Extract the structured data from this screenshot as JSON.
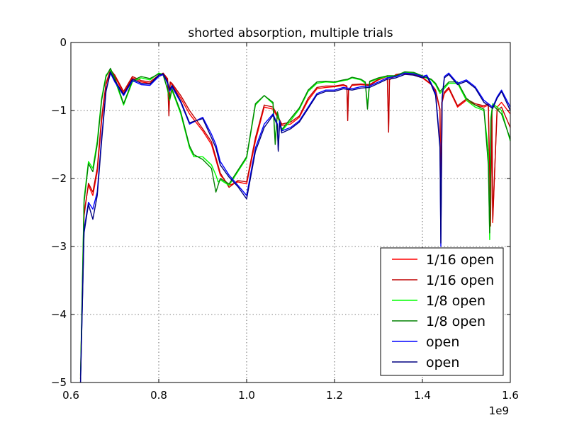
{
  "chart_data": {
    "type": "line",
    "title": "shorted absorption, multiple trials",
    "xlabel": "",
    "ylabel": "",
    "x_offset_label": "1e9",
    "xlim": [
      0.6,
      1.6
    ],
    "ylim": [
      -5,
      0
    ],
    "x_ticks": [
      0.6,
      0.8,
      1.0,
      1.2,
      1.4,
      1.6
    ],
    "x_tick_labels": [
      "0.6",
      "0.8",
      "1.0",
      "1.2",
      "1.4",
      "1.6"
    ],
    "y_ticks": [
      0,
      -1,
      -2,
      -3,
      -4,
      -5
    ],
    "y_tick_labels": [
      "0",
      "−1",
      "−2",
      "−3",
      "−4",
      "−5"
    ],
    "grid": true,
    "legend_position": "lower-right",
    "series": [
      {
        "name": "1/16 open",
        "color": "#ff0000",
        "x": [
          0.622,
          0.63,
          0.64,
          0.65,
          0.66,
          0.67,
          0.68,
          0.69,
          0.7,
          0.72,
          0.74,
          0.76,
          0.78,
          0.8,
          0.81,
          0.82,
          0.823,
          0.825,
          0.826,
          0.83,
          0.85,
          0.87,
          0.9,
          0.92,
          0.94,
          0.96,
          0.98,
          1.0,
          1.02,
          1.04,
          1.06,
          1.08,
          1.1,
          1.12,
          1.14,
          1.16,
          1.18,
          1.2,
          1.22,
          1.228,
          1.23,
          1.232,
          1.24,
          1.26,
          1.28,
          1.3,
          1.32,
          1.323,
          1.325,
          1.34,
          1.36,
          1.38,
          1.4,
          1.42,
          1.43,
          1.44,
          1.442,
          1.444,
          1.45,
          1.46,
          1.48,
          1.5,
          1.52,
          1.54,
          1.55,
          1.555,
          1.558,
          1.56,
          1.57,
          1.58,
          1.6
        ],
        "y": [
          -4.9,
          -2.5,
          -2.1,
          -2.25,
          -1.9,
          -1.15,
          -0.62,
          -0.42,
          -0.5,
          -0.75,
          -0.52,
          -0.58,
          -0.6,
          -0.5,
          -0.47,
          -0.55,
          -0.9,
          -0.75,
          -0.6,
          -0.62,
          -0.82,
          -1.05,
          -1.3,
          -1.5,
          -1.95,
          -2.1,
          -2.05,
          -2.08,
          -1.45,
          -0.95,
          -0.98,
          -1.22,
          -1.2,
          -1.1,
          -0.85,
          -0.68,
          -0.66,
          -0.65,
          -0.63,
          -0.65,
          -1.05,
          -0.7,
          -0.63,
          -0.62,
          -0.63,
          -0.55,
          -0.5,
          -1.25,
          -0.55,
          -0.48,
          -0.46,
          -0.48,
          -0.52,
          -0.62,
          -0.72,
          -1.0,
          -2.6,
          -0.9,
          -0.75,
          -0.68,
          -0.95,
          -0.85,
          -0.92,
          -0.95,
          -0.92,
          -2.55,
          -1.0,
          -2.65,
          -0.95,
          -0.88,
          -1.05
        ]
      },
      {
        "name": "1/16 open",
        "color": "#bf0000",
        "x": [
          0.622,
          0.63,
          0.64,
          0.65,
          0.66,
          0.67,
          0.68,
          0.69,
          0.7,
          0.72,
          0.74,
          0.76,
          0.78,
          0.8,
          0.81,
          0.82,
          0.823,
          0.825,
          0.826,
          0.83,
          0.85,
          0.87,
          0.9,
          0.92,
          0.94,
          0.96,
          0.98,
          1.0,
          1.02,
          1.04,
          1.06,
          1.08,
          1.1,
          1.12,
          1.14,
          1.16,
          1.18,
          1.2,
          1.22,
          1.228,
          1.23,
          1.232,
          1.24,
          1.26,
          1.28,
          1.3,
          1.32,
          1.323,
          1.325,
          1.34,
          1.36,
          1.38,
          1.4,
          1.42,
          1.43,
          1.44,
          1.442,
          1.444,
          1.45,
          1.46,
          1.48,
          1.5,
          1.52,
          1.54,
          1.55,
          1.555,
          1.558,
          1.56,
          1.57,
          1.58,
          1.6
        ],
        "y": [
          -4.95,
          -2.55,
          -2.07,
          -2.2,
          -1.85,
          -1.1,
          -0.6,
          -0.4,
          -0.48,
          -0.72,
          -0.5,
          -0.56,
          -0.58,
          -0.48,
          -0.45,
          -0.53,
          -1.08,
          -0.72,
          -0.58,
          -0.6,
          -0.78,
          -1.0,
          -1.27,
          -1.46,
          -1.92,
          -2.13,
          -2.03,
          -2.05,
          -1.4,
          -0.92,
          -0.95,
          -1.2,
          -1.17,
          -1.08,
          -0.82,
          -0.66,
          -0.64,
          -0.64,
          -0.62,
          -0.64,
          -1.15,
          -0.7,
          -0.62,
          -0.61,
          -0.62,
          -0.54,
          -0.49,
          -1.32,
          -0.55,
          -0.47,
          -0.45,
          -0.47,
          -0.51,
          -0.61,
          -0.7,
          -0.98,
          -2.65,
          -0.88,
          -0.73,
          -0.66,
          -0.93,
          -0.83,
          -0.9,
          -0.93,
          -0.9,
          -2.7,
          -1.0,
          -2.6,
          -1.0,
          -0.95,
          -1.25
        ]
      },
      {
        "name": "1/8 open",
        "color": "#00ff00",
        "x": [
          0.622,
          0.63,
          0.64,
          0.65,
          0.66,
          0.67,
          0.68,
          0.69,
          0.7,
          0.72,
          0.74,
          0.76,
          0.78,
          0.8,
          0.81,
          0.82,
          0.825,
          0.83,
          0.85,
          0.87,
          0.88,
          0.9,
          0.92,
          0.93,
          0.935,
          0.94,
          0.96,
          0.98,
          1.0,
          1.02,
          1.04,
          1.06,
          1.065,
          1.07,
          1.08,
          1.1,
          1.12,
          1.14,
          1.16,
          1.18,
          1.2,
          1.22,
          1.23,
          1.24,
          1.26,
          1.27,
          1.275,
          1.28,
          1.3,
          1.32,
          1.34,
          1.36,
          1.38,
          1.4,
          1.42,
          1.43,
          1.44,
          1.46,
          1.48,
          1.5,
          1.52,
          1.54,
          1.55,
          1.553,
          1.556,
          1.56,
          1.58,
          1.6
        ],
        "y": [
          -4.9,
          -2.3,
          -1.75,
          -1.85,
          -1.45,
          -0.82,
          -0.48,
          -0.4,
          -0.55,
          -0.92,
          -0.58,
          -0.52,
          -0.55,
          -0.45,
          -0.47,
          -0.7,
          -0.85,
          -0.7,
          -1.05,
          -1.55,
          -1.68,
          -1.68,
          -1.8,
          -1.95,
          -2.05,
          -2.02,
          -2.1,
          -1.9,
          -1.7,
          -0.92,
          -0.78,
          -0.9,
          -1.45,
          -1.05,
          -1.3,
          -1.15,
          -0.98,
          -0.72,
          -0.6,
          -0.58,
          -0.59,
          -0.56,
          -0.55,
          -0.52,
          -0.55,
          -0.6,
          -0.92,
          -0.58,
          -0.53,
          -0.5,
          -0.5,
          -0.44,
          -0.45,
          -0.5,
          -0.55,
          -0.62,
          -0.75,
          -0.6,
          -0.6,
          -0.85,
          -0.95,
          -1.0,
          -1.6,
          -2.9,
          -1.1,
          -0.9,
          -1.0,
          -1.45
        ]
      },
      {
        "name": "1/8 open",
        "color": "#008000",
        "x": [
          0.622,
          0.63,
          0.64,
          0.65,
          0.66,
          0.67,
          0.68,
          0.69,
          0.7,
          0.72,
          0.74,
          0.76,
          0.78,
          0.8,
          0.81,
          0.82,
          0.825,
          0.83,
          0.85,
          0.87,
          0.88,
          0.9,
          0.92,
          0.93,
          0.935,
          0.94,
          0.96,
          0.98,
          1.0,
          1.02,
          1.04,
          1.06,
          1.065,
          1.07,
          1.08,
          1.1,
          1.12,
          1.14,
          1.16,
          1.18,
          1.2,
          1.22,
          1.23,
          1.24,
          1.26,
          1.27,
          1.275,
          1.28,
          1.3,
          1.32,
          1.34,
          1.36,
          1.38,
          1.4,
          1.42,
          1.43,
          1.44,
          1.46,
          1.48,
          1.5,
          1.52,
          1.54,
          1.55,
          1.553,
          1.556,
          1.56,
          1.58,
          1.6
        ],
        "y": [
          -4.95,
          -2.35,
          -1.78,
          -1.9,
          -1.5,
          -0.85,
          -0.5,
          -0.38,
          -0.52,
          -0.9,
          -0.56,
          -0.5,
          -0.53,
          -0.46,
          -0.48,
          -0.68,
          -0.83,
          -0.68,
          -1.02,
          -1.52,
          -1.65,
          -1.72,
          -1.85,
          -2.2,
          -2.1,
          -2.0,
          -2.08,
          -1.88,
          -1.68,
          -0.9,
          -0.78,
          -0.88,
          -1.5,
          -1.02,
          -1.28,
          -1.12,
          -0.96,
          -0.7,
          -0.58,
          -0.57,
          -0.58,
          -0.55,
          -0.54,
          -0.51,
          -0.54,
          -0.58,
          -0.98,
          -0.57,
          -0.52,
          -0.49,
          -0.49,
          -0.43,
          -0.44,
          -0.49,
          -0.54,
          -0.6,
          -0.72,
          -0.58,
          -0.58,
          -0.82,
          -0.92,
          -0.98,
          -1.8,
          -2.8,
          -1.15,
          -0.92,
          -1.05,
          -1.42
        ]
      },
      {
        "name": "open",
        "color": "#0000ff",
        "x": [
          0.622,
          0.63,
          0.64,
          0.65,
          0.66,
          0.67,
          0.68,
          0.69,
          0.7,
          0.72,
          0.74,
          0.76,
          0.78,
          0.8,
          0.81,
          0.82,
          0.825,
          0.83,
          0.85,
          0.87,
          0.9,
          0.92,
          0.93,
          0.94,
          0.96,
          0.98,
          1.0,
          1.02,
          1.04,
          1.06,
          1.07,
          1.072,
          1.075,
          1.08,
          1.1,
          1.12,
          1.14,
          1.16,
          1.18,
          1.2,
          1.22,
          1.24,
          1.26,
          1.28,
          1.3,
          1.32,
          1.34,
          1.36,
          1.38,
          1.4,
          1.41,
          1.42,
          1.43,
          1.44,
          1.442,
          1.445,
          1.45,
          1.46,
          1.48,
          1.5,
          1.52,
          1.54,
          1.56,
          1.57,
          1.58,
          1.6
        ],
        "y": [
          -5.0,
          -2.75,
          -2.35,
          -2.45,
          -2.2,
          -1.4,
          -0.7,
          -0.45,
          -0.58,
          -0.78,
          -0.56,
          -0.62,
          -0.63,
          -0.5,
          -0.47,
          -0.6,
          -0.72,
          -0.65,
          -0.88,
          -1.2,
          -1.1,
          -1.35,
          -1.5,
          -1.75,
          -1.95,
          -2.1,
          -2.25,
          -1.55,
          -1.2,
          -1.05,
          -1.2,
          -1.58,
          -1.15,
          -1.3,
          -1.25,
          -1.15,
          -0.95,
          -0.75,
          -0.7,
          -0.7,
          -0.66,
          -0.68,
          -0.65,
          -0.64,
          -0.58,
          -0.52,
          -0.5,
          -0.45,
          -0.46,
          -0.5,
          -0.48,
          -0.6,
          -0.75,
          -1.5,
          -3.0,
          -0.8,
          -0.5,
          -0.45,
          -0.6,
          -0.55,
          -0.65,
          -0.85,
          -0.95,
          -0.8,
          -0.7,
          -0.95
        ]
      },
      {
        "name": "open",
        "color": "#000080",
        "x": [
          0.622,
          0.63,
          0.64,
          0.65,
          0.66,
          0.67,
          0.68,
          0.69,
          0.7,
          0.72,
          0.74,
          0.76,
          0.78,
          0.8,
          0.81,
          0.82,
          0.825,
          0.83,
          0.85,
          0.87,
          0.9,
          0.92,
          0.93,
          0.94,
          0.96,
          0.98,
          1.0,
          1.02,
          1.04,
          1.06,
          1.07,
          1.072,
          1.075,
          1.08,
          1.1,
          1.12,
          1.14,
          1.16,
          1.18,
          1.2,
          1.22,
          1.24,
          1.26,
          1.28,
          1.3,
          1.32,
          1.34,
          1.36,
          1.38,
          1.4,
          1.41,
          1.42,
          1.43,
          1.44,
          1.442,
          1.445,
          1.45,
          1.46,
          1.48,
          1.5,
          1.52,
          1.54,
          1.56,
          1.57,
          1.58,
          1.6
        ],
        "y": [
          -5.0,
          -2.8,
          -2.38,
          -2.6,
          -2.25,
          -1.45,
          -0.72,
          -0.43,
          -0.56,
          -0.76,
          -0.54,
          -0.6,
          -0.61,
          -0.48,
          -0.46,
          -0.58,
          -0.7,
          -0.63,
          -0.86,
          -1.18,
          -1.12,
          -1.4,
          -1.55,
          -1.8,
          -1.98,
          -2.12,
          -2.3,
          -1.6,
          -1.25,
          -1.07,
          -1.22,
          -1.6,
          -1.18,
          -1.33,
          -1.27,
          -1.17,
          -0.97,
          -0.77,
          -0.72,
          -0.72,
          -0.68,
          -0.7,
          -0.67,
          -0.66,
          -0.6,
          -0.54,
          -0.52,
          -0.47,
          -0.48,
          -0.52,
          -0.5,
          -0.62,
          -0.78,
          -1.55,
          -2.95,
          -0.82,
          -0.52,
          -0.47,
          -0.62,
          -0.57,
          -0.67,
          -0.88,
          -0.97,
          -0.82,
          -0.72,
          -1.0
        ]
      }
    ]
  }
}
